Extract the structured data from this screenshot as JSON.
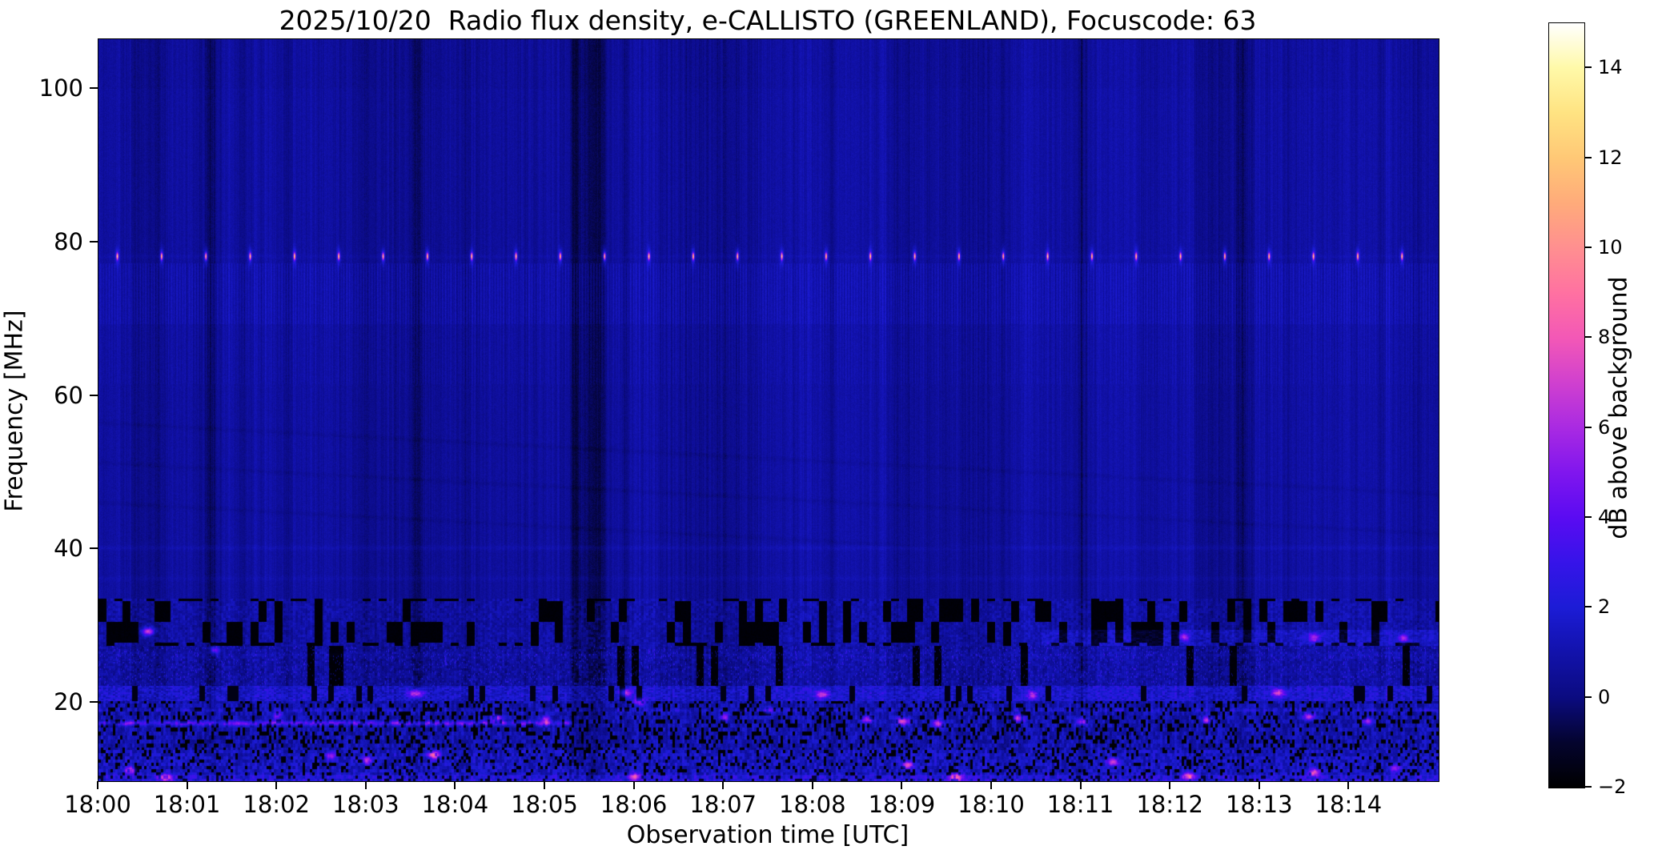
{
  "title": "2025/10/20  Radio flux density, e-CALLISTO (GREENLAND), Focuscode: 63",
  "axes": {
    "xlabel": "Observation time [UTC]",
    "ylabel": "Frequency [MHz]",
    "x_tick_labels": [
      "18:00",
      "18:01",
      "18:02",
      "18:03",
      "18:04",
      "18:05",
      "18:06",
      "18:07",
      "18:08",
      "18:09",
      "18:10",
      "18:11",
      "18:12",
      "18:13",
      "18:14"
    ],
    "y_tick_labels": [
      "20",
      "40",
      "60",
      "80",
      "100"
    ],
    "y_tick_values": [
      20,
      40,
      60,
      80,
      100
    ]
  },
  "colorbar": {
    "label": "dB above background",
    "tick_labels": [
      "−2",
      "0",
      "2",
      "4",
      "6",
      "8",
      "10",
      "12",
      "14"
    ],
    "tick_values": [
      -2,
      0,
      2,
      4,
      6,
      8,
      10,
      12,
      14
    ],
    "range_db": [
      -2,
      15
    ]
  },
  "chart_data": {
    "type": "heatmap",
    "subtype": "radio-spectrogram",
    "title": "2025/10/20  Radio flux density, e-CALLISTO (GREENLAND), Focuscode: 63",
    "xlabel": "Observation time [UTC]",
    "ylabel": "Frequency [MHz]",
    "value_label": "dB above background",
    "x_range_utc": [
      "18:00:00",
      "18:15:00"
    ],
    "x_minutes_span": 15,
    "y_range_mhz": [
      9.8,
      106.5
    ],
    "value_range_db": [
      -2,
      15
    ],
    "grid": false,
    "legend": "colorbar-right",
    "colormap_stops": [
      [
        -2,
        "#000000"
      ],
      [
        -1,
        "#04042e"
      ],
      [
        0,
        "#0b0b80"
      ],
      [
        1,
        "#1212ab"
      ],
      [
        2,
        "#1c1cd6"
      ],
      [
        3,
        "#3614e9"
      ],
      [
        4,
        "#5a0bf2"
      ],
      [
        5,
        "#8016ee"
      ],
      [
        6,
        "#a92ae2"
      ],
      [
        7,
        "#d040cf"
      ],
      [
        8,
        "#f358b6"
      ],
      [
        9,
        "#ff71a1"
      ],
      [
        10,
        "#ff8f90"
      ],
      [
        11,
        "#ffab7a"
      ],
      [
        12,
        "#ffc876"
      ],
      [
        13,
        "#ffe382"
      ],
      [
        14,
        "#fff9a8"
      ],
      [
        15,
        "#ffffff"
      ]
    ],
    "background_level_db": 0.6,
    "features": {
      "calibration_dots": {
        "freq_mhz": 78.2,
        "interval_s": 29.75,
        "first_offset_s": 12.4,
        "peak_db": 10
      },
      "faint_horizontal_lines_mhz": [
        78.2,
        40.2,
        36.2,
        26.2
      ],
      "ripple_band_strong_mhz": [
        69.4,
        77.3
      ],
      "ripple_band_weak_mhz": [
        61.5,
        69.4
      ],
      "rfi_block_band_mhz": [
        27.4,
        33.6
      ],
      "speckle_band_mhz": [
        22.2,
        27.4
      ],
      "bright_row_mhz": [
        20.2,
        22.2
      ],
      "noisy_low_band_mhz": [
        9.8,
        20.2
      ],
      "right_side_enhancement": {
        "t_min": [
          10.55,
          15.0
        ],
        "freq_mhz": [
          25.4,
          29.5
        ],
        "boost_db": 0.55
      },
      "pink_streak": {
        "freq_mhz": 17.35,
        "t_min": [
          0,
          5.3
        ],
        "peak_db": 5
      },
      "dark_time_bands_min": [
        [
          1.25,
          7,
          0.85
        ],
        [
          1.62,
          5,
          0.7
        ],
        [
          2.1,
          4,
          0.5
        ],
        [
          3.55,
          6,
          0.75
        ],
        [
          4.12,
          4,
          0.55
        ],
        [
          5.33,
          6,
          1.1
        ],
        [
          5.55,
          11,
          1.5
        ],
        [
          5.9,
          4,
          0.6
        ],
        [
          6.6,
          3,
          0.5
        ],
        [
          8.2,
          4,
          0.8
        ],
        [
          9.5,
          3,
          0.5
        ],
        [
          10.12,
          4,
          0.75
        ],
        [
          11.0,
          5,
          0.9
        ],
        [
          12.78,
          4,
          0.7
        ],
        [
          13.3,
          3,
          0.5
        ],
        [
          14.35,
          3,
          0.5
        ]
      ],
      "bright_spots": [
        [
          0.55,
          29.3,
          5,
          6.5
        ],
        [
          1.3,
          26.9,
          4,
          4.5
        ],
        [
          3.55,
          21.2,
          7,
          5.5
        ],
        [
          3.75,
          13.2,
          5,
          7.5
        ],
        [
          2.6,
          13.1,
          4,
          4.5
        ],
        [
          5.9,
          21.3,
          5,
          5
        ],
        [
          6.05,
          20.1,
          5,
          4.5
        ],
        [
          8.1,
          21.1,
          6,
          5
        ],
        [
          8.6,
          17.9,
          5,
          5
        ],
        [
          9.0,
          17.6,
          6,
          6
        ],
        [
          9.4,
          17.3,
          5,
          5.5
        ],
        [
          9.05,
          11.9,
          5,
          6
        ],
        [
          9.6,
          10.3,
          6,
          7
        ],
        [
          7.5,
          19.0,
          4,
          4.5
        ],
        [
          10.3,
          18.0,
          5,
          5.5
        ],
        [
          10.45,
          21.0,
          4,
          4.5
        ],
        [
          11.0,
          17.5,
          5,
          5
        ],
        [
          11.35,
          12.3,
          5,
          6
        ],
        [
          12.2,
          10.4,
          5,
          6.5
        ],
        [
          12.4,
          17.8,
          4,
          5
        ],
        [
          12.15,
          28.6,
          4,
          4.5
        ],
        [
          13.6,
          28.5,
          5,
          4.5
        ],
        [
          14.6,
          28.4,
          4,
          4.5
        ],
        [
          13.2,
          21.3,
          6,
          5
        ],
        [
          13.55,
          18.2,
          5,
          5.5
        ],
        [
          13.6,
          10.9,
          5,
          6
        ],
        [
          14.5,
          11.5,
          4,
          5
        ],
        [
          14.2,
          17.6,
          4,
          5
        ],
        [
          3.0,
          12.5,
          4,
          5
        ],
        [
          0.75,
          10.3,
          6,
          6
        ],
        [
          0.35,
          11.2,
          5,
          5
        ],
        [
          6.0,
          10.4,
          5,
          5.5
        ],
        [
          4.45,
          18.0,
          5,
          5
        ],
        [
          5.0,
          17.8,
          4,
          4.5
        ],
        [
          7.0,
          18.1,
          4,
          4.5
        ],
        [
          2.0,
          18.3,
          4,
          4
        ]
      ]
    }
  }
}
